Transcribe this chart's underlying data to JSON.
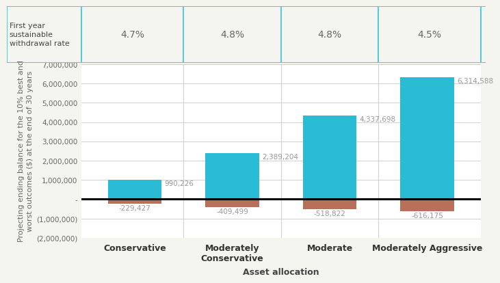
{
  "categories": [
    "Conservative",
    "Moderately\nConservative",
    "Moderate",
    "Moderately Aggressive"
  ],
  "withdrawal_rates": [
    "4.7%",
    "4.8%",
    "4.8%",
    "4.5%"
  ],
  "best_values": [
    990226,
    2389204,
    4337698,
    6314588
  ],
  "worst_values": [
    -229427,
    -409499,
    -518822,
    -616175
  ],
  "bar_color_best": "#29bcd4",
  "bar_color_worst": "#b8705a",
  "table_header_label": "First year\nsustainable\nwithdrawal rate",
  "ylabel": "Projecting ending balance for the 10% best and\nworst outcomes ($) at the end of 30 years",
  "xlabel": "Asset allocation",
  "ylim_min": -2000000,
  "ylim_max": 7000000,
  "yticks": [
    -2000000,
    -1000000,
    0,
    1000000,
    2000000,
    3000000,
    4000000,
    5000000,
    6000000,
    7000000
  ],
  "ytick_labels": [
    "(2,000,000)",
    "(1,000,000)",
    "-",
    "1,000,000",
    "2,000,000",
    "3,000,000",
    "4,000,000",
    "5,000,000",
    "6,000,000",
    "7,000,000"
  ],
  "background_color": "#f5f5ef",
  "table_border_color": "#5bc8d5",
  "grid_color": "#d0d0d0",
  "text_color_label": "#999999",
  "bar_width": 0.55,
  "annotation_fontsize": 7.5,
  "axis_label_fontsize": 8,
  "tick_fontsize": 7.5,
  "withdrawal_fontsize": 10,
  "header_fontsize": 8
}
